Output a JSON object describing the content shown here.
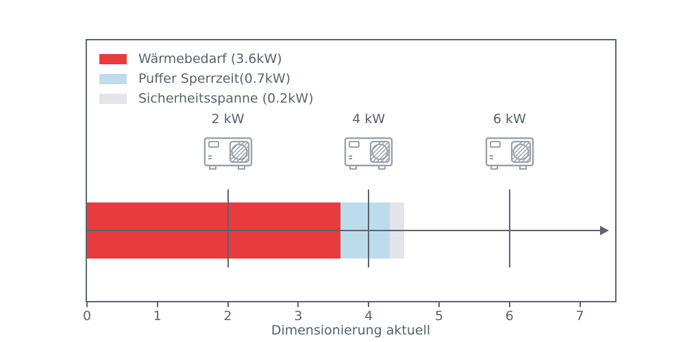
{
  "chart_data": {
    "type": "bar",
    "orientation": "horizontal",
    "stacked": true,
    "title": "",
    "xlabel": "Dimensionierung aktuell",
    "ylabel": "",
    "xlim": [
      0,
      7.5
    ],
    "xticks": [
      0,
      1,
      2,
      3,
      4,
      5,
      6,
      7
    ],
    "grid": false,
    "legend_position": "upper-left",
    "series": [
      {
        "name": "Wärmebedarf (3.6kW)",
        "value": 3.6,
        "color": "#e83b3e"
      },
      {
        "name": "Puffer Sperrzeit(0.7kW)",
        "value": 0.7,
        "color": "#bcdcec"
      },
      {
        "name": "Sicherheitsspanne (0.2kW)",
        "value": 0.2,
        "color": "#e2e4e9"
      }
    ],
    "markers": [
      {
        "label": "2 kW",
        "x": 2,
        "icon": "heat-pump"
      },
      {
        "label": "4 kW",
        "x": 4,
        "icon": "heat-pump"
      },
      {
        "label": "6 kW",
        "x": 6,
        "icon": "heat-pump"
      }
    ]
  },
  "style": {
    "axis_color": "#5a6371",
    "icon_color": "#9aa1ab",
    "background": "#ffffff"
  }
}
